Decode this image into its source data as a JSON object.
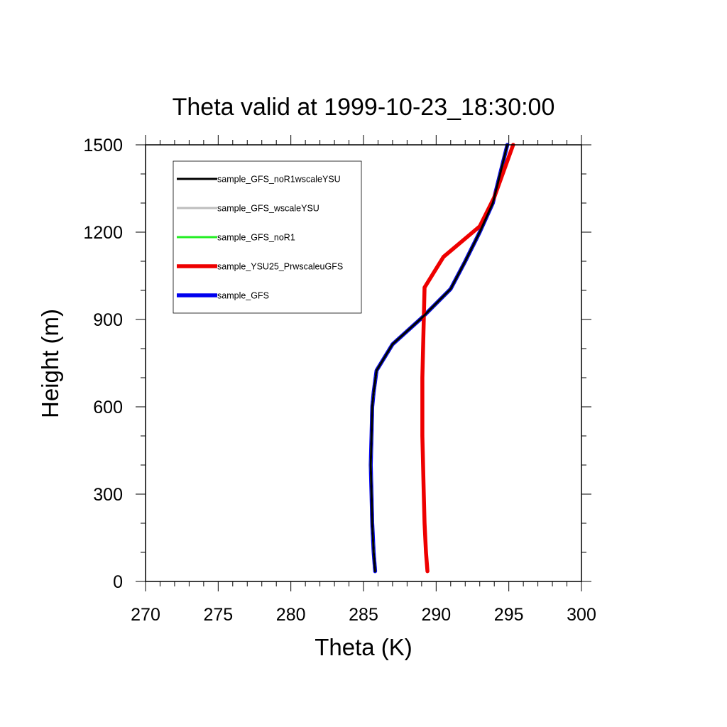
{
  "chart_data": {
    "type": "line",
    "title": "Theta valid at 1999-10-23_18:30:00",
    "xlabel": "Theta (K)",
    "ylabel": "Height (m)",
    "xlim": [
      270,
      300
    ],
    "ylim": [
      0,
      1500
    ],
    "xticks": [
      270,
      275,
      280,
      285,
      290,
      295,
      300
    ],
    "yticks": [
      0,
      300,
      600,
      900,
      1200,
      1500
    ],
    "x_minor_step": 1,
    "y_minor_step": 100,
    "legend_position": "top-left",
    "series": [
      {
        "name": "sample_GFS_noR1wscaleYSU",
        "color": "#000000",
        "points": [
          [
            285.8,
            35
          ],
          [
            285.7,
            100
          ],
          [
            285.6,
            200
          ],
          [
            285.55,
            300
          ],
          [
            285.5,
            400
          ],
          [
            285.55,
            500
          ],
          [
            285.6,
            600
          ],
          [
            285.7,
            650
          ],
          [
            285.9,
            725
          ],
          [
            287.0,
            815
          ],
          [
            289.0,
            905
          ],
          [
            291.0,
            1005
          ],
          [
            292.0,
            1100
          ],
          [
            293.0,
            1200
          ],
          [
            293.9,
            1300
          ],
          [
            294.9,
            1500
          ]
        ]
      },
      {
        "name": "sample_GFS_wscaleYSU",
        "color": "#bdbdbd",
        "points": [
          [
            285.8,
            35
          ],
          [
            285.7,
            100
          ],
          [
            285.6,
            200
          ],
          [
            285.55,
            300
          ],
          [
            285.5,
            400
          ],
          [
            285.55,
            500
          ],
          [
            285.6,
            600
          ],
          [
            285.7,
            650
          ],
          [
            285.9,
            725
          ],
          [
            287.0,
            815
          ],
          [
            289.0,
            905
          ],
          [
            291.0,
            1005
          ],
          [
            292.0,
            1100
          ],
          [
            293.0,
            1200
          ],
          [
            293.9,
            1300
          ],
          [
            294.9,
            1500
          ]
        ]
      },
      {
        "name": "sample_GFS_noR1",
        "color": "#22ee22",
        "points": [
          [
            285.8,
            35
          ],
          [
            285.7,
            100
          ],
          [
            285.6,
            200
          ],
          [
            285.55,
            300
          ],
          [
            285.5,
            400
          ],
          [
            285.55,
            500
          ],
          [
            285.6,
            600
          ],
          [
            285.7,
            650
          ],
          [
            285.9,
            725
          ],
          [
            287.0,
            815
          ],
          [
            289.0,
            905
          ],
          [
            291.0,
            1005
          ],
          [
            292.0,
            1100
          ],
          [
            293.0,
            1200
          ],
          [
            293.9,
            1300
          ],
          [
            294.9,
            1500
          ]
        ]
      },
      {
        "name": "sample_YSU25_PrwscaleuGFS",
        "color": "#ee0000",
        "points": [
          [
            289.4,
            35
          ],
          [
            289.3,
            100
          ],
          [
            289.2,
            200
          ],
          [
            289.15,
            300
          ],
          [
            289.1,
            400
          ],
          [
            289.05,
            500
          ],
          [
            289.05,
            600
          ],
          [
            289.05,
            700
          ],
          [
            289.1,
            800
          ],
          [
            289.15,
            900
          ],
          [
            289.2,
            1010
          ],
          [
            290.5,
            1115
          ],
          [
            293.0,
            1220
          ],
          [
            294.0,
            1320
          ],
          [
            295.3,
            1500
          ]
        ]
      },
      {
        "name": "sample_GFS",
        "color": "#0000ee",
        "points": [
          [
            285.8,
            35
          ],
          [
            285.7,
            100
          ],
          [
            285.6,
            200
          ],
          [
            285.55,
            300
          ],
          [
            285.5,
            400
          ],
          [
            285.55,
            500
          ],
          [
            285.6,
            600
          ],
          [
            285.7,
            650
          ],
          [
            285.9,
            725
          ],
          [
            287.0,
            815
          ],
          [
            289.0,
            905
          ],
          [
            291.0,
            1005
          ],
          [
            292.0,
            1100
          ],
          [
            293.0,
            1200
          ],
          [
            293.9,
            1300
          ],
          [
            294.9,
            1500
          ]
        ]
      }
    ]
  }
}
